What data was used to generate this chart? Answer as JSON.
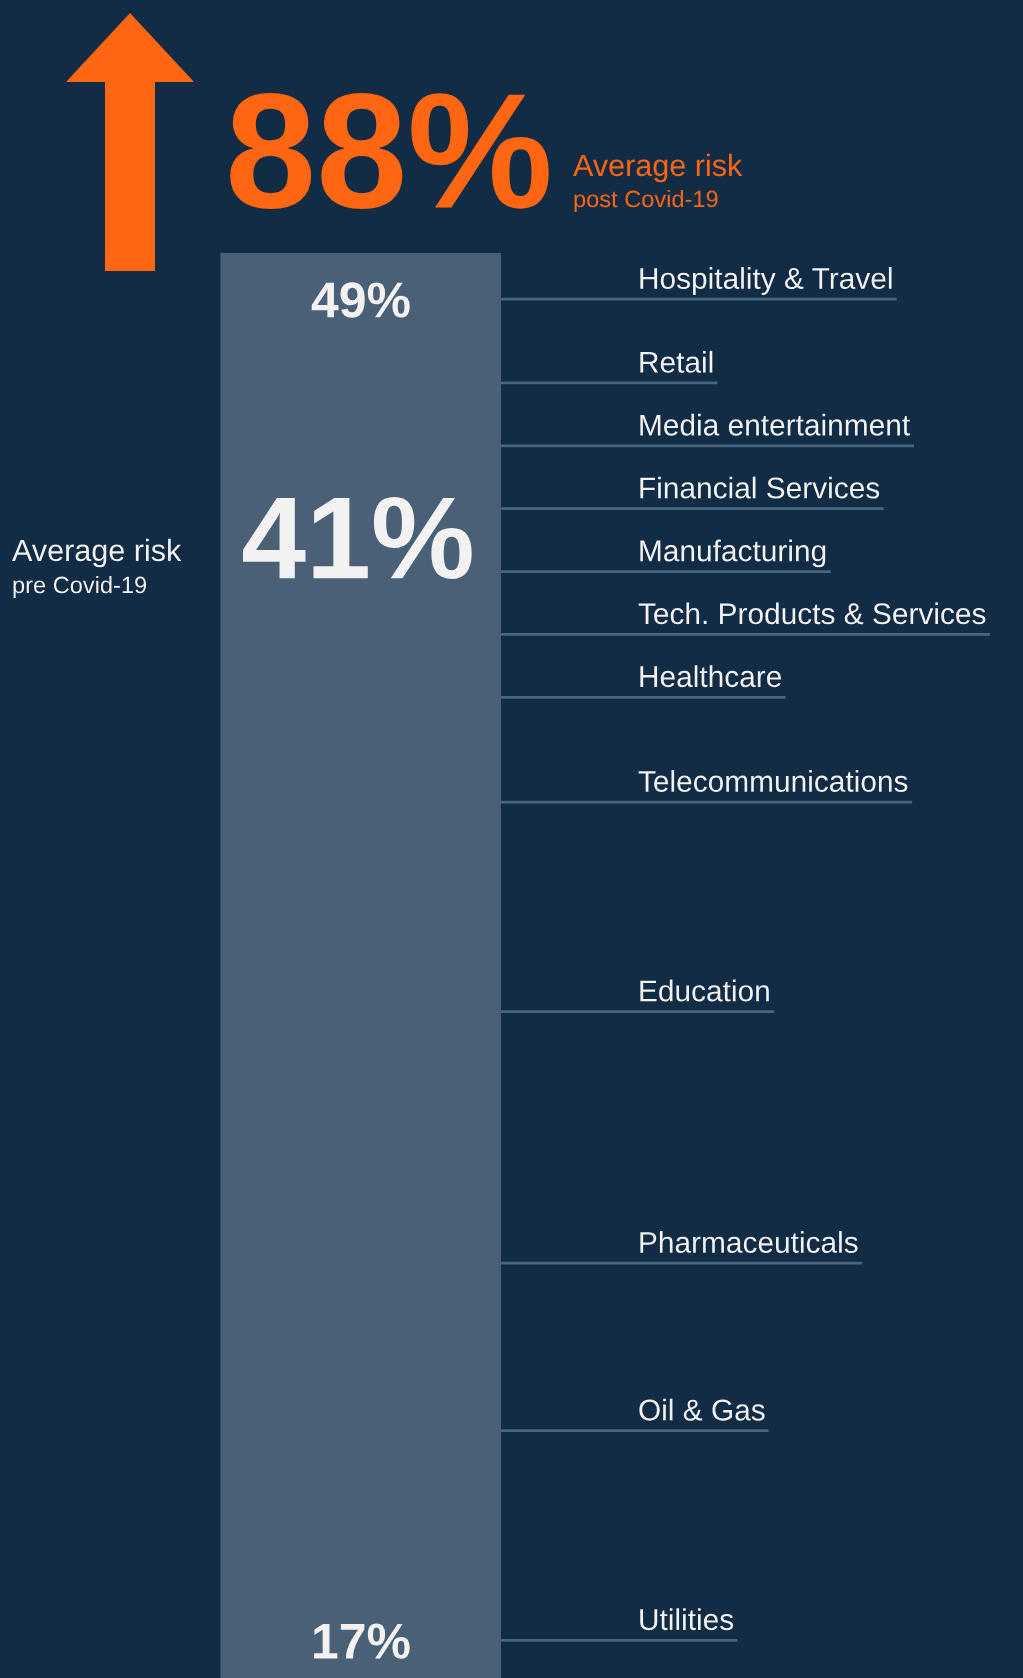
{
  "chart_data": {
    "type": "scatter",
    "categories": [
      null
    ],
    "ylim": [
      16.1,
      50.1
    ],
    "yticks": [
      {
        "value": 49,
        "label": "49%"
      },
      {
        "value": 17,
        "label": "17%"
      }
    ],
    "annotations": [
      "88%",
      "Average risk",
      "post Covid-19",
      "41%",
      "Average risk",
      "pre Covid-19"
    ],
    "ref_lines": [
      {
        "axis": "y",
        "value": 49,
        "label": "Hospitality & Travel",
        "color": "#4a6580"
      },
      {
        "axis": "y",
        "value": 47,
        "label": "Retail",
        "color": "#4a6580"
      },
      {
        "axis": "y",
        "value": 45.5,
        "label": "Media entertainment",
        "color": "#4a6580"
      },
      {
        "axis": "y",
        "value": 44,
        "label": "Financial Services",
        "color": "#4a6580"
      },
      {
        "axis": "y",
        "value": 42.5,
        "label": "Manufacturing",
        "color": "#4a6580"
      },
      {
        "axis": "y",
        "value": 41,
        "label": "Tech. Products & Services",
        "color": "#4a6580"
      },
      {
        "axis": "y",
        "value": 39.5,
        "label": "Healthcare",
        "color": "#4a6580"
      },
      {
        "axis": "y",
        "value": 37,
        "label": "Telecommunications",
        "color": "#4a6580"
      },
      {
        "axis": "y",
        "value": 32,
        "label": "Education",
        "color": "#4a6580"
      },
      {
        "axis": "y",
        "value": 26,
        "label": "Pharmaceuticals",
        "color": "#4a6580"
      },
      {
        "axis": "y",
        "value": 22,
        "label": "Oil & Gas",
        "color": "#4a6580"
      },
      {
        "axis": "y",
        "value": 17,
        "label": "Utilities",
        "color": "#4a6580"
      }
    ]
  }
}
